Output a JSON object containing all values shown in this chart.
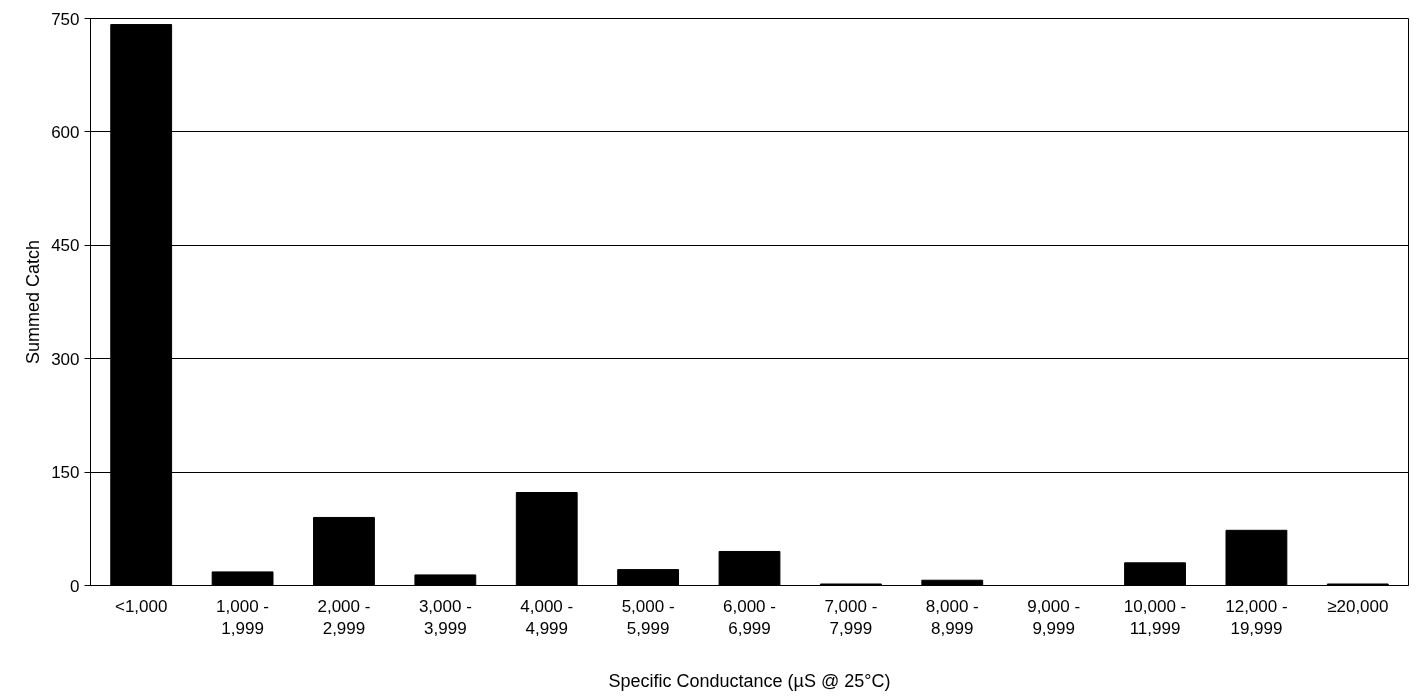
{
  "chart_data": {
    "type": "bar",
    "xlabel": "Specific Conductance (µS @ 25°C)",
    "ylabel": "Summed Catch",
    "categories": [
      "<1,000",
      "1,000 - 1,999",
      "2,000 - 2,999",
      "3,000 - 3,999",
      "4,000 - 4,999",
      "5,000 - 5,999",
      "6,000 - 6,999",
      "7,000 - 7,999",
      "8,000 - 8,999",
      "9,000 - 9,999",
      "10,000 - 11,999",
      "12,000 - 19,999",
      "≥20,000"
    ],
    "values": [
      742,
      18,
      90,
      14,
      123,
      21,
      45,
      2,
      7,
      0,
      30,
      73,
      2
    ],
    "color": "#000000",
    "ylim": [
      0,
      750
    ],
    "yticks": [
      0,
      150,
      300,
      450,
      600,
      750
    ],
    "grid": "y"
  }
}
